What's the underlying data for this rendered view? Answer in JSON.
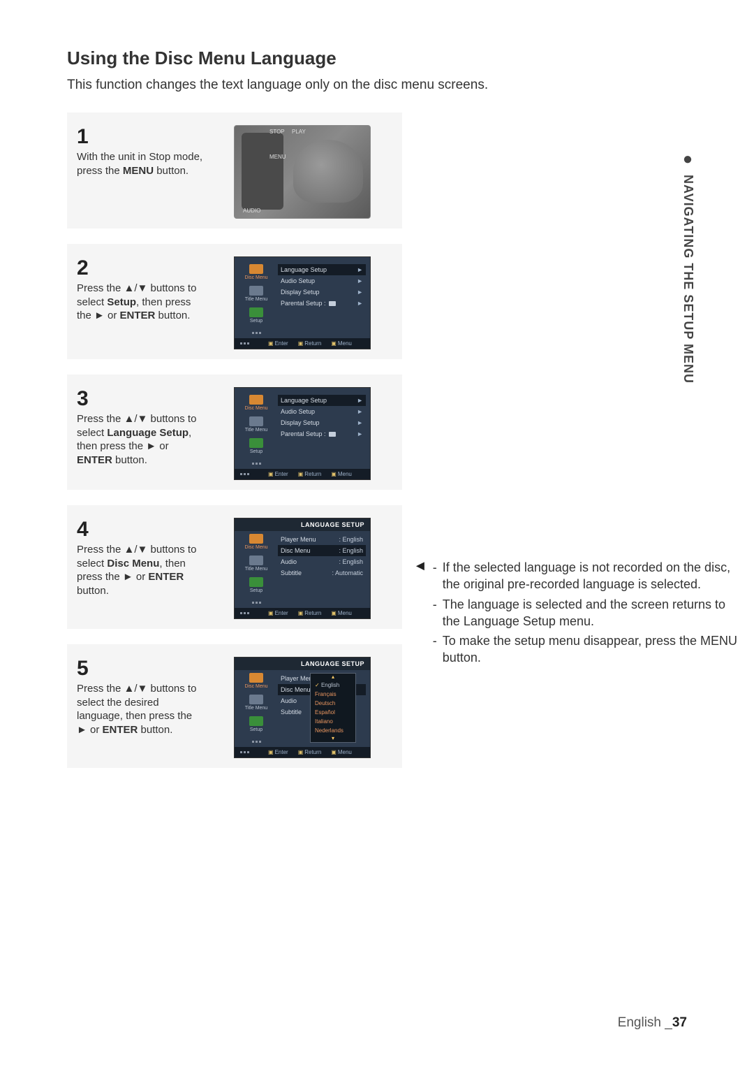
{
  "title": "Using the Disc Menu Language",
  "intro": "This function changes the text language only on the disc menu screens.",
  "side_tab": "NAVIGATING THE SETUP MENU",
  "footer_lang": "English",
  "footer_page": "37",
  "remote_labels": {
    "stop": "STOP",
    "play": "PLAY",
    "menu": "MENU",
    "audio": "AUDIO"
  },
  "sidebar_labels": {
    "disc_menu": "Disc Menu",
    "title_menu": "Title Menu",
    "setup": "Setup"
  },
  "setup_menu": {
    "items": [
      "Language Setup",
      "Audio Setup",
      "Display Setup",
      "Parental Setup :"
    ],
    "footer": {
      "enter": "Enter",
      "return": "Return",
      "menu": "Menu"
    }
  },
  "language_setup_header": "LANGUAGE SETUP",
  "lang_menu": {
    "rows": [
      {
        "label": "Player Menu",
        "value": "English"
      },
      {
        "label": "Disc Menu",
        "value": "English"
      },
      {
        "label": "Audio",
        "value": "English"
      },
      {
        "label": "Subtitle",
        "value": "Automatic"
      }
    ]
  },
  "dropdown_options": [
    "English",
    "Français",
    "Deutsch",
    "Español",
    "Italiano",
    "Nederlands"
  ],
  "steps": {
    "s1": {
      "num": "1",
      "text_pre": "With the unit in Stop mode, press the ",
      "text_b": "MENU",
      "text_post": " button."
    },
    "s2": {
      "num": "2",
      "text": "Press the ▲/▼ buttons to select <b>Setup</b>, then press the ► or <b>ENTER</b> button."
    },
    "s3": {
      "num": "3",
      "text": "Press the ▲/▼ buttons to select <b>Language Setup</b>, then press the ► or <b>ENTER</b> button."
    },
    "s4": {
      "num": "4",
      "text": "Press the  ▲/▼ buttons to select <b>Disc Menu</b>, then press the ► or <b>ENTER</b>  button."
    },
    "s5": {
      "num": "5",
      "text": "Press the ▲/▼ buttons to select the desired language, then press the ► or <b>ENTER</b> button."
    }
  },
  "notes": [
    "If the selected language is not recorded on the disc, the original pre-recorded language is selected.",
    "The language is selected and the screen returns to the Language Setup menu.",
    "To make the setup menu disappear, press the MENU button."
  ],
  "colors": {
    "panel_bg": "#f5f5f5",
    "screen_bg": "#2d3b4e",
    "screen_dark": "#141c26",
    "accent": "#e8955f"
  }
}
